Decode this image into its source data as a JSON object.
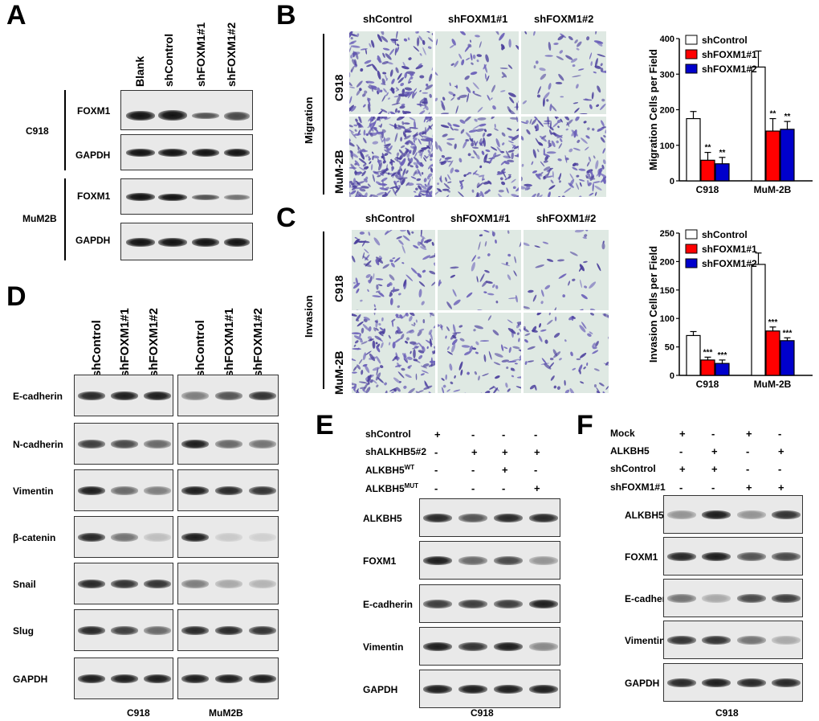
{
  "panels": {
    "A": "A",
    "B": "B",
    "C": "C",
    "D": "D",
    "E": "E",
    "F": "F"
  },
  "panelA": {
    "columns": [
      "Blank",
      "shControl",
      "shFOXM1#1",
      "shFOXM1#2"
    ],
    "groups": [
      "C918",
      "MuM2B"
    ],
    "rows": [
      "FOXM1",
      "GAPDH",
      "FOXM1",
      "GAPDH"
    ]
  },
  "panelB": {
    "columns": [
      "shControl",
      "shFOXM1#1",
      "shFOXM1#2"
    ],
    "section": "Migration",
    "rows": [
      "C918",
      "MuM-2B"
    ]
  },
  "panelC": {
    "columns": [
      "shControl",
      "shFOXM1#1",
      "shFOXM1#2"
    ],
    "section": "Invasion",
    "rows": [
      "C918",
      "MuM-2B"
    ]
  },
  "panelD": {
    "columns": [
      "shControl",
      "shFOXM1#1",
      "shFOXM1#2",
      "shControl",
      "shFOXM1#1",
      "shFOXM1#2"
    ],
    "rows": [
      "E-cadherin",
      "N-cadherin",
      "Vimentin",
      "β-catenin",
      "Snail",
      "Slug",
      "GAPDH"
    ],
    "footer": [
      "C918",
      "MuM2B"
    ]
  },
  "panelE": {
    "conditions": [
      {
        "name": "shControl",
        "sup": "",
        "signs": [
          "+",
          "-",
          "-",
          "-"
        ]
      },
      {
        "name": "shALKHB5#2",
        "sup": "",
        "signs": [
          "-",
          "+",
          "+",
          "+"
        ]
      },
      {
        "name": "ALKBH5",
        "sup": "WT",
        "signs": [
          "-",
          "-",
          "+",
          "-"
        ]
      },
      {
        "name": "ALKBH5",
        "sup": "MUT",
        "signs": [
          "-",
          "-",
          "-",
          "+"
        ]
      }
    ],
    "rows": [
      "ALKBH5",
      "FOXM1",
      "E-cadherin",
      "Vimentin",
      "GAPDH"
    ],
    "footer": "C918"
  },
  "panelF": {
    "conditions": [
      {
        "name": "Mock",
        "signs": [
          "+",
          "-",
          "+",
          "-"
        ]
      },
      {
        "name": "ALKBH5",
        "signs": [
          "-",
          "+",
          "-",
          "+"
        ]
      },
      {
        "name": "shControl",
        "signs": [
          "+",
          "+",
          "-",
          "-"
        ]
      },
      {
        "name": "shFOXM1#1",
        "signs": [
          "-",
          "-",
          "+",
          "+"
        ]
      }
    ],
    "rows": [
      "ALKBH5",
      "FOXM1",
      "E-cadherin",
      "Vimentin",
      "GAPDH"
    ],
    "footer": "C918"
  },
  "chart_data": [
    {
      "type": "bar",
      "ylabel": "Migration Cells per Field",
      "categories": [
        "C918",
        "MuM-2B"
      ],
      "ylim": [
        0,
        400
      ],
      "yticks": [
        0,
        100,
        200,
        300,
        400
      ],
      "series": [
        {
          "name": "shControl",
          "color": "#ffffff",
          "values": [
            175,
            320
          ],
          "errors": [
            20,
            45
          ],
          "sig": [
            "",
            ""
          ]
        },
        {
          "name": "shFOXM1#1",
          "color": "#ff0000",
          "values": [
            58,
            140
          ],
          "errors": [
            22,
            35
          ],
          "sig": [
            "**",
            "**"
          ]
        },
        {
          "name": "shFOXM1#2",
          "color": "#0000cc",
          "values": [
            48,
            145
          ],
          "errors": [
            18,
            22
          ],
          "sig": [
            "**",
            "**"
          ]
        }
      ]
    },
    {
      "type": "bar",
      "ylabel": "Invasion Cells per Field",
      "categories": [
        "C918",
        "MuM-2B"
      ],
      "ylim": [
        0,
        250
      ],
      "yticks": [
        0,
        50,
        100,
        150,
        200,
        250
      ],
      "series": [
        {
          "name": "shControl",
          "color": "#ffffff",
          "values": [
            70,
            195
          ],
          "errors": [
            7,
            20
          ],
          "sig": [
            "",
            ""
          ]
        },
        {
          "name": "shFOXM1#1",
          "color": "#ff0000",
          "values": [
            27,
            78
          ],
          "errors": [
            5,
            7
          ],
          "sig": [
            "***",
            "***"
          ]
        },
        {
          "name": "shFOXM1#2",
          "color": "#0000cc",
          "values": [
            21,
            61
          ],
          "errors": [
            6,
            5
          ],
          "sig": [
            "***",
            "***"
          ]
        }
      ]
    }
  ]
}
